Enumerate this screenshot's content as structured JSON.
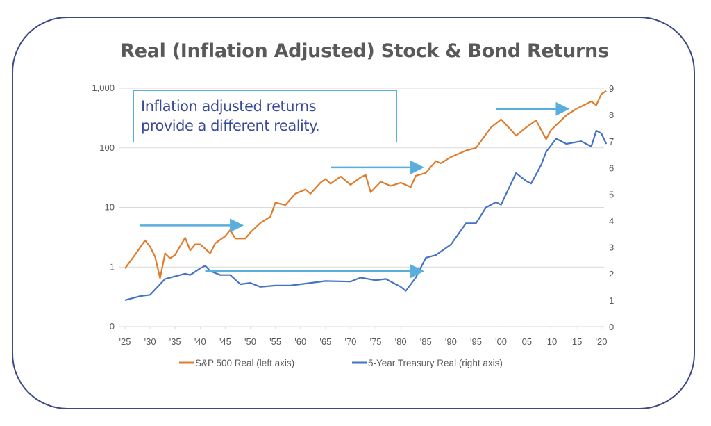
{
  "title": "Real (Inflation Adjusted) Stock & Bond Returns",
  "annotation_text": [
    "Inflation adjusted returns",
    "provide a different reality."
  ],
  "chart_data": {
    "type": "line",
    "title": "Real (Inflation Adjusted) Stock & Bond Returns",
    "x_ticks": [
      "'25",
      "'30",
      "'35",
      "'40",
      "'45",
      "'50",
      "'55",
      "'60",
      "'65",
      "'70",
      "'75",
      "'80",
      "'85",
      "'90",
      "'95",
      "'00",
      "'05",
      "'10",
      "'15",
      "'20"
    ],
    "x_range": [
      1925,
      2021
    ],
    "left_axis": {
      "scale": "log",
      "ticks": [
        "0",
        "1",
        "10",
        "100",
        "1,000"
      ],
      "tick_values": [
        0.1,
        1,
        10,
        100,
        1000
      ]
    },
    "right_axis": {
      "scale": "linear",
      "ticks": [
        "0",
        "1",
        "2",
        "3",
        "4",
        "5",
        "6",
        "7",
        "8",
        "9"
      ],
      "range": [
        0,
        9
      ]
    },
    "grid": "horizontal",
    "legend_position": "bottom",
    "series": [
      {
        "name": "S&P 500 Real (left axis)",
        "axis": "left",
        "color": "#e07b2a",
        "points": [
          [
            1925,
            0.95
          ],
          [
            1927,
            1.6
          ],
          [
            1929,
            2.8
          ],
          [
            1930,
            2.2
          ],
          [
            1931,
            1.5
          ],
          [
            1932,
            0.65
          ],
          [
            1933,
            1.7
          ],
          [
            1934,
            1.4
          ],
          [
            1935,
            1.6
          ],
          [
            1937,
            3.1
          ],
          [
            1938,
            1.9
          ],
          [
            1939,
            2.4
          ],
          [
            1940,
            2.4
          ],
          [
            1942,
            1.7
          ],
          [
            1943,
            2.5
          ],
          [
            1945,
            3.3
          ],
          [
            1946,
            4.2
          ],
          [
            1947,
            3.0
          ],
          [
            1949,
            3.0
          ],
          [
            1950,
            3.8
          ],
          [
            1952,
            5.5
          ],
          [
            1954,
            7
          ],
          [
            1955,
            12
          ],
          [
            1957,
            11
          ],
          [
            1959,
            17
          ],
          [
            1961,
            20
          ],
          [
            1962,
            17
          ],
          [
            1964,
            26
          ],
          [
            1965,
            30
          ],
          [
            1966,
            25
          ],
          [
            1968,
            33
          ],
          [
            1970,
            24
          ],
          [
            1972,
            32
          ],
          [
            1973,
            35
          ],
          [
            1974,
            18
          ],
          [
            1976,
            27
          ],
          [
            1978,
            23
          ],
          [
            1980,
            26
          ],
          [
            1982,
            22
          ],
          [
            1983,
            34
          ],
          [
            1985,
            38
          ],
          [
            1987,
            60
          ],
          [
            1988,
            55
          ],
          [
            1990,
            70
          ],
          [
            1993,
            90
          ],
          [
            1995,
            100
          ],
          [
            1998,
            220
          ],
          [
            2000,
            300
          ],
          [
            2002,
            200
          ],
          [
            2003,
            160
          ],
          [
            2005,
            220
          ],
          [
            2007,
            290
          ],
          [
            2009,
            140
          ],
          [
            2010,
            200
          ],
          [
            2013,
            350
          ],
          [
            2015,
            450
          ],
          [
            2018,
            600
          ],
          [
            2019,
            520
          ],
          [
            2020,
            800
          ],
          [
            2021,
            900
          ]
        ]
      },
      {
        "name": "5-Year Treasury Real (right axis)",
        "axis": "right",
        "color": "#4472c4",
        "points": [
          [
            1925,
            1.0
          ],
          [
            1928,
            1.15
          ],
          [
            1930,
            1.2
          ],
          [
            1932,
            1.6
          ],
          [
            1933,
            1.8
          ],
          [
            1935,
            1.9
          ],
          [
            1937,
            2.0
          ],
          [
            1938,
            1.95
          ],
          [
            1940,
            2.2
          ],
          [
            1941,
            2.3
          ],
          [
            1942,
            2.1
          ],
          [
            1944,
            1.95
          ],
          [
            1946,
            1.95
          ],
          [
            1948,
            1.6
          ],
          [
            1950,
            1.65
          ],
          [
            1952,
            1.5
          ],
          [
            1955,
            1.55
          ],
          [
            1958,
            1.55
          ],
          [
            1960,
            1.6
          ],
          [
            1965,
            1.72
          ],
          [
            1970,
            1.7
          ],
          [
            1972,
            1.85
          ],
          [
            1975,
            1.75
          ],
          [
            1977,
            1.8
          ],
          [
            1980,
            1.5
          ],
          [
            1981,
            1.35
          ],
          [
            1983,
            1.85
          ],
          [
            1985,
            2.6
          ],
          [
            1987,
            2.7
          ],
          [
            1990,
            3.1
          ],
          [
            1993,
            3.9
          ],
          [
            1995,
            3.9
          ],
          [
            1997,
            4.5
          ],
          [
            1999,
            4.7
          ],
          [
            2000,
            4.6
          ],
          [
            2002,
            5.4
          ],
          [
            2003,
            5.8
          ],
          [
            2005,
            5.5
          ],
          [
            2006,
            5.4
          ],
          [
            2008,
            6.1
          ],
          [
            2009,
            6.6
          ],
          [
            2011,
            7.1
          ],
          [
            2013,
            6.9
          ],
          [
            2016,
            7.0
          ],
          [
            2017,
            6.9
          ],
          [
            2018,
            6.8
          ],
          [
            2019,
            7.4
          ],
          [
            2020,
            7.3
          ],
          [
            2021,
            6.9
          ]
        ]
      }
    ],
    "arrows": [
      {
        "from": 1928,
        "to": 1948,
        "left_value": 5
      },
      {
        "from": 1941,
        "to": 1984,
        "left_value": 0.85
      },
      {
        "from": 1966,
        "to": 1984,
        "left_value": 47
      },
      {
        "from": 1999,
        "to": 2013,
        "left_value": 450
      }
    ],
    "arrow_color": "#5aaedc"
  }
}
